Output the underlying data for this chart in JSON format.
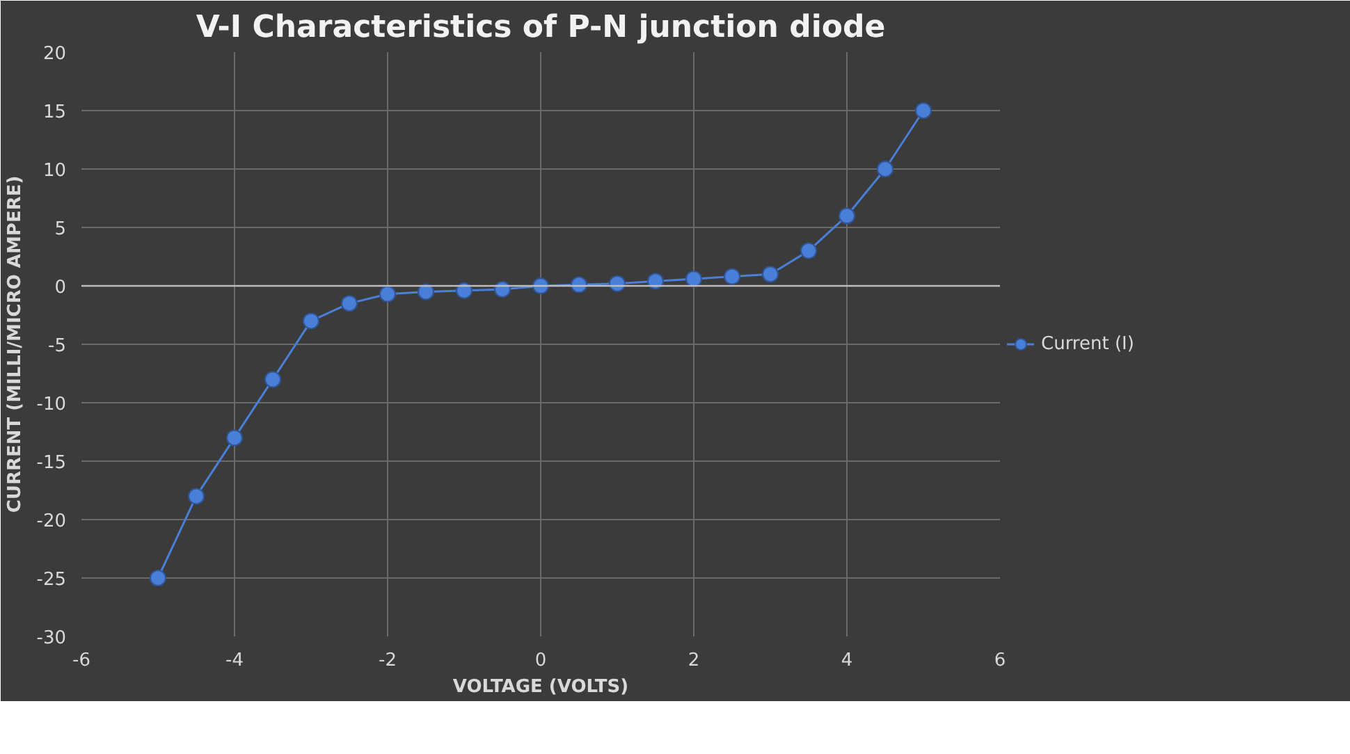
{
  "chart_data": {
    "type": "line",
    "title": "V-I Characteristics of P-N junction diode",
    "xlabel": "VOLTAGE (VOLTS)",
    "ylabel": "CURRENT (MILLI/MICRO AMPERE)",
    "x": [
      -5,
      -4.5,
      -4,
      -3.5,
      -3,
      -2.5,
      -2,
      -1.5,
      -1,
      -0.5,
      0,
      0.5,
      1,
      1.5,
      2,
      2.5,
      3,
      3.5,
      4,
      4.5,
      5
    ],
    "series": [
      {
        "name": "Current (I)",
        "color": "#4a7fd8",
        "values": [
          -25,
          -18,
          -13,
          -8,
          -3,
          -1.5,
          -0.7,
          -0.5,
          -0.4,
          -0.3,
          0,
          0.1,
          0.2,
          0.4,
          0.6,
          0.8,
          1,
          3,
          6,
          10,
          15
        ]
      }
    ],
    "xlim": [
      -6,
      6
    ],
    "ylim": [
      -30,
      20
    ],
    "xticks": [
      -6,
      -4,
      -2,
      0,
      2,
      4,
      6
    ],
    "yticks": [
      -30,
      -25,
      -20,
      -15,
      -10,
      -5,
      0,
      5,
      10,
      15,
      20
    ],
    "grid": true,
    "legend": "right",
    "marker": "circle",
    "line_style": "solid"
  }
}
